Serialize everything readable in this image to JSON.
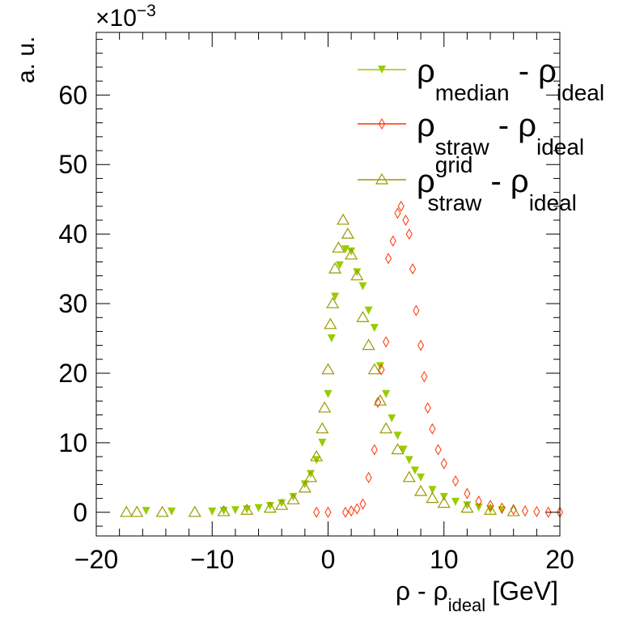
{
  "chart_data": {
    "type": "scatter",
    "title": "",
    "xlabel": "ρ - ρ",
    "xlabel_sub": "ideal",
    "xlabel_unit": "[GeV]",
    "ylabel": "a. u.",
    "y_multiplier": "×10",
    "y_multiplier_exp": "−3",
    "xlim": [
      -20,
      20
    ],
    "ylim": [
      -3.4,
      69
    ],
    "xticks": [
      -20,
      -10,
      0,
      10,
      20
    ],
    "xtick_labels": [
      "−20",
      "−10",
      "0",
      "10",
      "20"
    ],
    "yticks": [
      0,
      10,
      20,
      30,
      40,
      50,
      60
    ],
    "ytick_labels": [
      "0",
      "10",
      "20",
      "30",
      "40",
      "50",
      "60"
    ],
    "grid": false,
    "legend_position": "top-right",
    "series": [
      {
        "name": "median",
        "legend": {
          "rho": "ρ",
          "sub": "median",
          "sup": "",
          "minus": "-",
          "rho2": "ρ",
          "sub2": "ideal"
        },
        "marker": "triangle-down-filled",
        "color": "#99cc00",
        "x": [
          -15.7,
          -13.5,
          -10,
          -9,
          -8,
          -7,
          -6,
          -5,
          -4,
          -3,
          -2,
          -1.5,
          -1,
          -0.5,
          0,
          0.3,
          0.6,
          1,
          1.5,
          2,
          2.5,
          3,
          3.5,
          4,
          4.5,
          5,
          5.5,
          6,
          6.5,
          7,
          7.5,
          8,
          9,
          10,
          11,
          12,
          13,
          14,
          15
        ],
        "y": [
          0.2,
          0.1,
          0.1,
          0.2,
          0.3,
          0.4,
          0.6,
          0.9,
          1.3,
          2.2,
          4,
          5.5,
          7.5,
          10,
          17,
          25,
          31,
          35.5,
          37.8,
          37.5,
          34.5,
          32.5,
          29,
          26.5,
          21,
          17,
          13.5,
          11,
          9,
          7.5,
          6,
          5,
          3.2,
          2.2,
          1.5,
          1,
          0.7,
          0.4,
          0.3
        ]
      },
      {
        "name": "straw",
        "legend": {
          "rho": "ρ",
          "sub": "straw",
          "sup": "",
          "minus": "-",
          "rho2": "ρ",
          "sub2": "ideal"
        },
        "marker": "diamond-open",
        "color": "#ff3300",
        "x": [
          -1,
          0,
          1.5,
          2,
          2.5,
          3,
          3.5,
          4,
          4.3,
          4.6,
          5,
          5.2,
          5.6,
          6,
          6.3,
          6.7,
          7,
          7.3,
          7.6,
          8,
          8.3,
          8.6,
          9,
          9.5,
          10,
          11,
          12,
          13,
          14,
          15,
          16,
          17,
          18,
          19,
          20
        ],
        "y": [
          0,
          0,
          0,
          0.2,
          0.5,
          1.2,
          5,
          9,
          15.8,
          20.5,
          24.5,
          36.5,
          39,
          43,
          44,
          42,
          40,
          35,
          29,
          24,
          19.5,
          15,
          12,
          9,
          7,
          4.5,
          2.7,
          1.6,
          1,
          0.6,
          0.4,
          0.2,
          0.1,
          0,
          0
        ]
      },
      {
        "name": "grid",
        "legend": {
          "rho": "ρ",
          "sub": "straw",
          "sup": "grid",
          "minus": "-",
          "rho2": "ρ",
          "sub2": "ideal"
        },
        "marker": "triangle-up-open",
        "color": "#999900",
        "x": [
          -17.4,
          -16.5,
          -14.3,
          -11.5,
          -9,
          -7,
          -5,
          -4,
          -3,
          -2,
          -1.5,
          -1,
          -0.5,
          -0.3,
          0,
          0.2,
          0.4,
          0.6,
          0.9,
          1.3,
          1.7,
          2,
          2.5,
          3,
          3.5,
          4,
          4.5,
          5,
          6,
          7,
          8,
          9,
          10,
          12,
          14,
          16
        ],
        "y": [
          0,
          0,
          0,
          0,
          0.1,
          0.3,
          0.6,
          1,
          1.8,
          3.5,
          5,
          8,
          12,
          15,
          20.5,
          27,
          30,
          35,
          38,
          42,
          40,
          37,
          34,
          28,
          24,
          20.5,
          16,
          12,
          9,
          5,
          3,
          2,
          1.3,
          0.6,
          0.3,
          0.1
        ]
      }
    ]
  }
}
